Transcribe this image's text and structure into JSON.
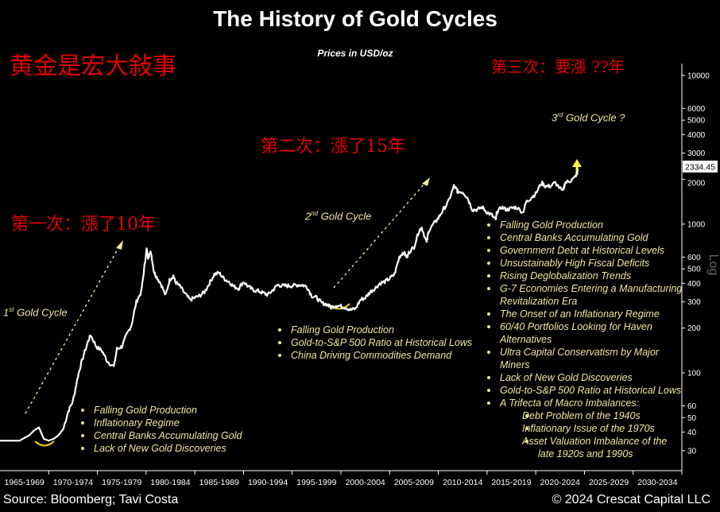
{
  "header": {
    "title": "The History of Gold Cycles",
    "subtitle": "Prices in USD/oz"
  },
  "annotations": {
    "cn_main": "黄金是宏大敍事",
    "cn_first": "第一次：漲了10年",
    "cn_second": "第二次：漲了15年",
    "cn_third": "第三次：要漲 ??年",
    "cycle1": "1st Gold Cycle",
    "cycle2": "2nd Gold Cycle",
    "cycle3": "3rd Gold Cycle ?",
    "price_tag": "2334.45"
  },
  "bullets_cycle1": [
    "Falling Gold Production",
    "Inflationary Regime",
    "Central Banks Accumulating Gold",
    "Lack of New Gold Discoveries"
  ],
  "bullets_cycle2": [
    "Falling Gold Production",
    "Gold-to-S&P 500 Ratio at Historical Lows",
    "China Driving Commodities Demand"
  ],
  "bullets_cycle3": [
    {
      "text": "Falling Gold Production"
    },
    {
      "text": "Central Banks Accumulating Gold"
    },
    {
      "text": "Government Debt at Historical Levels"
    },
    {
      "text": "Unsustainably High Fiscal Deficits"
    },
    {
      "text": "Rising Deglobalization Trends"
    },
    {
      "text": "G-7 Economies Entering a Manufacturing",
      "cont": "Revitalization Era"
    },
    {
      "text": "The Onset of an Inflationary Regime"
    },
    {
      "text": "60/40 Portfolios Looking for Haven",
      "cont": "Alternatives"
    },
    {
      "text": "Ultra Capital Conservatism by Major",
      "cont": "Miners"
    },
    {
      "text": "Lack of New Gold Discoveries"
    },
    {
      "text": "Gold-to-S&P 500 Ratio at Historical Lows"
    },
    {
      "text": "A Trifecta of Macro Imbalances:"
    },
    {
      "text": "Debt Problem of the 1940s",
      "sub": true
    },
    {
      "text": "Inflationary Issue of the 1970s",
      "sub": true
    },
    {
      "text": "Asset Valuation Imbalance of the",
      "cont": "late 1920s and 1990s",
      "sub": true
    }
  ],
  "footer": {
    "source": "Source: Bloomberg; Tavi Costa",
    "copyright": "© 2024 Crescat Capital LLC"
  },
  "colors": {
    "background": "#000000",
    "line": "#ffffff",
    "accent_yellow": "#f0e6a0",
    "chinese_red": "#e60000",
    "arrow_yellow": "#ffff33"
  },
  "chart_data": {
    "type": "line",
    "title": "The History of Gold Cycles",
    "subtitle": "Prices in USD/oz",
    "xlabel": "",
    "ylabel": "Log",
    "yscale": "log",
    "ylim": [
      22,
      12000
    ],
    "xlim": [
      1965,
      2035
    ],
    "x_tick_labels": [
      "1965-1969",
      "1970-1974",
      "1975-1979",
      "1980-1984",
      "1985-1989",
      "1990-1994",
      "1995-1999",
      "2000-2004",
      "2005-2009",
      "2010-2014",
      "2015-2019",
      "2020-2024",
      "2025-2029",
      "2030-2034"
    ],
    "y_ticks": [
      30,
      40,
      50,
      60,
      100,
      200,
      300,
      400,
      500,
      600,
      1000,
      2000,
      3000,
      4000,
      5000,
      6000,
      10000
    ],
    "y_axis_label_position": "right",
    "grid": false,
    "last_value": 2334.45,
    "series": [
      {
        "x": [
          1965,
          1966,
          1967,
          1968,
          1968.5,
          1969,
          1969.5,
          1970,
          1970.5,
          1971,
          1971.5,
          1972,
          1972.5,
          1973,
          1973.4,
          1974,
          1974.3,
          1974.9,
          1975.5,
          1976,
          1976.7,
          1977,
          1977.5,
          1978,
          1978.5,
          1979,
          1979.5,
          1979.8,
          1980.05,
          1980.2,
          1980.5,
          1980.8,
          1981,
          1981.5,
          1982,
          1982.4,
          1982.8,
          1983,
          1983.5,
          1984,
          1984.5,
          1985,
          1985.5,
          1986,
          1986.5,
          1987,
          1987.5,
          1988,
          1988.5,
          1989,
          1989.5,
          1990,
          1990.5,
          1991,
          1991.5,
          1992,
          1992.5,
          1993,
          1993.5,
          1994,
          1994.5,
          1995,
          1995.5,
          1996,
          1996.5,
          1997,
          1997.5,
          1998,
          1998.5,
          1999,
          1999.5,
          2000,
          2000.5,
          2001,
          2001.5,
          2002,
          2002.5,
          2003,
          2003.5,
          2004,
          2004.5,
          2005,
          2005.5,
          2006,
          2006.4,
          2006.8,
          2007,
          2007.5,
          2008,
          2008.3,
          2008.8,
          2009,
          2009.5,
          2010,
          2010.5,
          2011,
          2011.6,
          2011.9,
          2012,
          2012.5,
          2013,
          2013.5,
          2014,
          2014.5,
          2015,
          2015.5,
          2015.9,
          2016,
          2016.5,
          2017,
          2017.5,
          2018,
          2018.7,
          2019,
          2019.5,
          2020,
          2020.6,
          2021,
          2021.5,
          2022,
          2022.8,
          2023,
          2023.5,
          2024,
          2024.4
        ],
        "y": [
          35,
          35,
          35,
          38,
          41,
          43,
          36,
          35,
          36,
          38,
          42,
          55,
          65,
          95,
          120,
          160,
          180,
          150,
          140,
          120,
          110,
          145,
          150,
          180,
          210,
          300,
          350,
          500,
          680,
          600,
          650,
          480,
          450,
          400,
          330,
          420,
          450,
          410,
          380,
          340,
          310,
          320,
          330,
          350,
          400,
          460,
          470,
          430,
          410,
          380,
          370,
          410,
          380,
          360,
          355,
          345,
          335,
          360,
          390,
          385,
          385,
          385,
          390,
          390,
          380,
          330,
          320,
          295,
          290,
          275,
          285,
          280,
          275,
          265,
          270,
          310,
          320,
          350,
          370,
          400,
          410,
          430,
          460,
          600,
          650,
          600,
          650,
          700,
          900,
          950,
          750,
          900,
          1000,
          1100,
          1250,
          1400,
          1800,
          1700,
          1650,
          1650,
          1500,
          1250,
          1250,
          1300,
          1200,
          1150,
          1060,
          1200,
          1300,
          1250,
          1280,
          1300,
          1200,
          1400,
          1500,
          1600,
          1900,
          1800,
          1800,
          1900,
          1650,
          1900,
          1950,
          2050,
          2334
        ]
      }
    ]
  }
}
